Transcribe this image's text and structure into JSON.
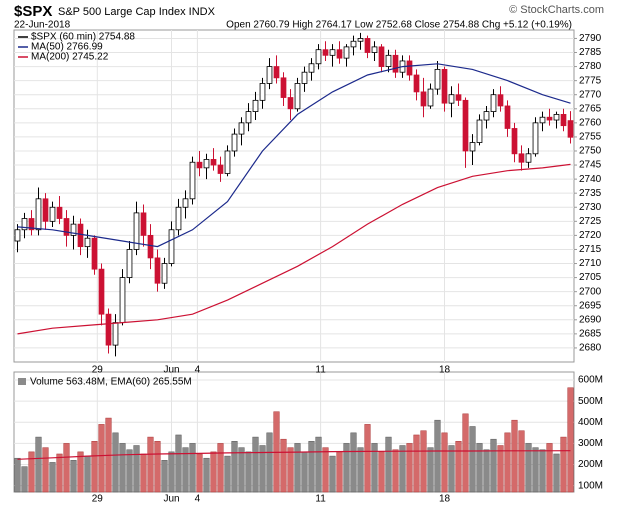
{
  "chart_data": {
    "type": "candlestick",
    "title": "$SPX",
    "subtitle": "S&P 500 Large Cap Index INDX",
    "source": "© StockCharts.com",
    "date": "22-Jun-2018",
    "quote": "Open 2760.79 High 2764.17 Low 2752.68 Close 2754.88 Chg +5.12 (+0.19%)",
    "price_name": "$SPX (60 min) 2754.88",
    "up_color": "#000000",
    "down_color": "#cc1133",
    "grid": true,
    "legend": "top-left",
    "xlim": [
      -0.5,
      79.5
    ],
    "xticks": [
      {
        "value": 11.4,
        "label": "29"
      },
      {
        "value": 22,
        "label": "Jun"
      },
      {
        "value": 25.7,
        "label": "4"
      },
      {
        "value": 43.3,
        "label": "11"
      },
      {
        "value": 61,
        "label": "18"
      }
    ],
    "ylim": [
      2675,
      2793
    ],
    "yticks": [
      2680,
      2685,
      2690,
      2695,
      2700,
      2705,
      2710,
      2715,
      2720,
      2725,
      2730,
      2735,
      2740,
      2745,
      2750,
      2755,
      2760,
      2765,
      2770,
      2775,
      2780,
      2785,
      2790
    ],
    "ohlc": [
      [
        2718,
        2724,
        2714,
        2722
      ],
      [
        2722,
        2728,
        2719,
        2726
      ],
      [
        2726,
        2729,
        2720,
        2722
      ],
      [
        2722,
        2737,
        2720,
        2733
      ],
      [
        2733,
        2735,
        2722,
        2725
      ],
      [
        2725,
        2732,
        2723,
        2730
      ],
      [
        2730,
        2734,
        2724,
        2726
      ],
      [
        2726,
        2729,
        2716,
        2720
      ],
      [
        2720,
        2727,
        2715,
        2724
      ],
      [
        2724,
        2726,
        2713,
        2716
      ],
      [
        2716,
        2722,
        2712,
        2719
      ],
      [
        2719,
        2720,
        2706,
        2708
      ],
      [
        2708,
        2710,
        2688,
        2692
      ],
      [
        2692,
        2694,
        2678,
        2681
      ],
      [
        2681,
        2692,
        2677,
        2689
      ],
      [
        2689,
        2708,
        2688,
        2705
      ],
      [
        2705,
        2718,
        2703,
        2715
      ],
      [
        2715,
        2732,
        2713,
        2728
      ],
      [
        2728,
        2731,
        2716,
        2720
      ],
      [
        2720,
        2724,
        2708,
        2712
      ],
      [
        2712,
        2715,
        2700,
        2703
      ],
      [
        2703,
        2712,
        2701,
        2710
      ],
      [
        2710,
        2725,
        2709,
        2722
      ],
      [
        2722,
        2733,
        2720,
        2730
      ],
      [
        2730,
        2736,
        2726,
        2733
      ],
      [
        2733,
        2748,
        2731,
        2746
      ],
      [
        2746,
        2750,
        2741,
        2744
      ],
      [
        2744,
        2749,
        2740,
        2747
      ],
      [
        2747,
        2751,
        2743,
        2745
      ],
      [
        2745,
        2748,
        2739,
        2742
      ],
      [
        2742,
        2752,
        2741,
        2750
      ],
      [
        2750,
        2758,
        2748,
        2756
      ],
      [
        2756,
        2762,
        2752,
        2760
      ],
      [
        2760,
        2767,
        2757,
        2764
      ],
      [
        2764,
        2771,
        2761,
        2768
      ],
      [
        2768,
        2776,
        2765,
        2774
      ],
      [
        2774,
        2783,
        2772,
        2780
      ],
      [
        2780,
        2784,
        2774,
        2776
      ],
      [
        2776,
        2778,
        2766,
        2769
      ],
      [
        2769,
        2772,
        2761,
        2765
      ],
      [
        2765,
        2776,
        2764,
        2774
      ],
      [
        2774,
        2780,
        2771,
        2778
      ],
      [
        2778,
        2783,
        2775,
        2781
      ],
      [
        2781,
        2788,
        2779,
        2786
      ],
      [
        2786,
        2789,
        2782,
        2784
      ],
      [
        2784,
        2788,
        2780,
        2786
      ],
      [
        2786,
        2789,
        2781,
        2783
      ],
      [
        2783,
        2788,
        2780,
        2787
      ],
      [
        2787,
        2791,
        2784,
        2789
      ],
      [
        2789,
        2792,
        2786,
        2790
      ],
      [
        2790,
        2791,
        2783,
        2785
      ],
      [
        2785,
        2789,
        2782,
        2787
      ],
      [
        2787,
        2788,
        2778,
        2780
      ],
      [
        2780,
        2786,
        2778,
        2784
      ],
      [
        2784,
        2786,
        2776,
        2778
      ],
      [
        2778,
        2784,
        2776,
        2782
      ],
      [
        2782,
        2784,
        2775,
        2777
      ],
      [
        2777,
        2779,
        2768,
        2771
      ],
      [
        2771,
        2776,
        2762,
        2766
      ],
      [
        2766,
        2774,
        2765,
        2772
      ],
      [
        2772,
        2782,
        2770,
        2779
      ],
      [
        2779,
        2780,
        2764,
        2767
      ],
      [
        2767,
        2773,
        2762,
        2770
      ],
      [
        2770,
        2774,
        2766,
        2768
      ],
      [
        2768,
        2769,
        2744,
        2750
      ],
      [
        2750,
        2756,
        2745,
        2753
      ],
      [
        2753,
        2763,
        2752,
        2761
      ],
      [
        2761,
        2766,
        2758,
        2764
      ],
      [
        2764,
        2772,
        2762,
        2770
      ],
      [
        2770,
        2773,
        2764,
        2766
      ],
      [
        2766,
        2768,
        2755,
        2758
      ],
      [
        2758,
        2760,
        2746,
        2749
      ],
      [
        2749,
        2752,
        2743,
        2746
      ],
      [
        2746,
        2751,
        2744,
        2749
      ],
      [
        2749,
        2762,
        2748,
        2760
      ],
      [
        2760,
        2764,
        2757,
        2762
      ],
      [
        2762,
        2765,
        2759,
        2761
      ],
      [
        2761,
        2764,
        2758,
        2763
      ],
      [
        2763,
        2765,
        2757,
        2759
      ],
      [
        2760.79,
        2764.17,
        2752.68,
        2754.88
      ]
    ],
    "overlays": [
      {
        "name": "MA(50) 2766.99",
        "color": "#1c2a8c",
        "x": [
          0,
          5,
          10,
          15,
          20,
          25,
          30,
          35,
          40,
          45,
          50,
          55,
          60,
          65,
          70,
          75,
          79
        ],
        "values": [
          2723,
          2722,
          2720,
          2718,
          2716,
          2722,
          2732,
          2750,
          2763,
          2771,
          2777,
          2780,
          2781,
          2779,
          2775,
          2770,
          2766.99
        ]
      },
      {
        "name": "MA(200) 2745.22",
        "color": "#cc1133",
        "x": [
          0,
          5,
          10,
          15,
          20,
          25,
          30,
          35,
          40,
          45,
          50,
          55,
          60,
          65,
          70,
          75,
          79
        ],
        "values": [
          2685,
          2687,
          2688,
          2689,
          2690,
          2692,
          2697,
          2703,
          2709,
          2716,
          2724,
          2731,
          2737,
          2741,
          2743,
          2744,
          2745.22
        ]
      }
    ],
    "volume": {
      "label": "Volume 563.48M, EMA(60) 265.55M",
      "up_color": "#8a8a8a",
      "down_color": "#d46a6a",
      "ylim": [
        70,
        638
      ],
      "yticks": [
        {
          "value": 100,
          "label": "100M"
        },
        {
          "value": 200,
          "label": "200M"
        },
        {
          "value": 300,
          "label": "300M"
        },
        {
          "value": 400,
          "label": "400M"
        },
        {
          "value": 500,
          "label": "500M"
        },
        {
          "value": 600,
          "label": "600M"
        }
      ],
      "values": [
        230,
        190,
        260,
        330,
        280,
        210,
        250,
        300,
        220,
        260,
        240,
        310,
        390,
        420,
        350,
        300,
        270,
        290,
        250,
        330,
        310,
        220,
        260,
        340,
        280,
        300,
        250,
        230,
        260,
        300,
        240,
        310,
        280,
        260,
        330,
        290,
        350,
        450,
        320,
        280,
        300,
        260,
        310,
        330,
        280,
        240,
        260,
        300,
        350,
        280,
        390,
        300,
        260,
        330,
        270,
        290,
        300,
        340,
        360,
        280,
        410,
        350,
        290,
        310,
        440,
        380,
        300,
        270,
        320,
        290,
        350,
        410,
        360,
        300,
        280,
        270,
        300,
        250,
        330,
        563.48
      ],
      "ema": {
        "color": "#cc1133",
        "x": [
          0,
          5,
          10,
          15,
          20,
          25,
          30,
          35,
          40,
          45,
          50,
          55,
          60,
          65,
          70,
          75,
          79
        ],
        "values": [
          225,
          232,
          240,
          246,
          250,
          252,
          255,
          257,
          259,
          261,
          262,
          263,
          264,
          264,
          265,
          265,
          265.55
        ]
      }
    }
  }
}
